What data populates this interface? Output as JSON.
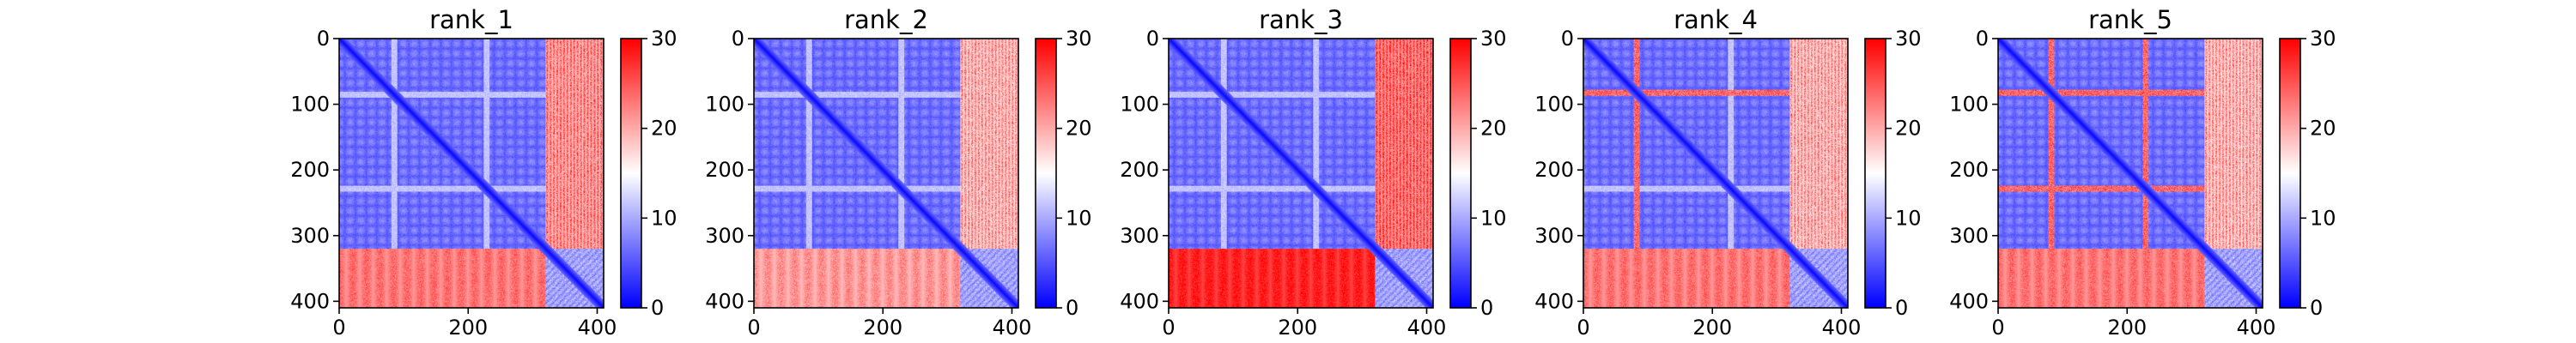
{
  "chart_data": {
    "type": "heatmap",
    "colormap": "bwr",
    "vmin": 0,
    "vmax": 30,
    "matrix_size": 410,
    "colorbar_ticks": [
      "0",
      "10",
      "20",
      "30"
    ],
    "colorbar_values": [
      0,
      10,
      20,
      30
    ],
    "x_ticks": [
      "0",
      "200",
      "400"
    ],
    "x_tick_values": [
      0,
      200,
      400
    ],
    "y_ticks": [
      "0",
      "100",
      "200",
      "300",
      "400"
    ],
    "y_tick_values": [
      0,
      100,
      200,
      300,
      400
    ],
    "blocks_boundary": 320,
    "panels": [
      {
        "title": "rank_1",
        "off_diagonal_upper_right": 24,
        "off_diagonal_lower_left": 25,
        "high_distance_rows": [],
        "light_rows": [
          85,
          228
        ]
      },
      {
        "title": "rank_2",
        "off_diagonal_upper_right": 22,
        "off_diagonal_lower_left": 23,
        "high_distance_rows": [],
        "light_rows": [
          85,
          228
        ]
      },
      {
        "title": "rank_3",
        "off_diagonal_upper_right": 26,
        "off_diagonal_lower_left": 30,
        "high_distance_rows": [],
        "light_rows": [
          85,
          228
        ]
      },
      {
        "title": "rank_4",
        "off_diagonal_upper_right": 22,
        "off_diagonal_lower_left": 25,
        "high_distance_rows": [
          82
        ],
        "light_rows": [
          228
        ]
      },
      {
        "title": "rank_5",
        "off_diagonal_upper_right": 22,
        "off_diagonal_lower_left": 25,
        "high_distance_rows": [
          82,
          228
        ],
        "light_rows": []
      }
    ]
  }
}
